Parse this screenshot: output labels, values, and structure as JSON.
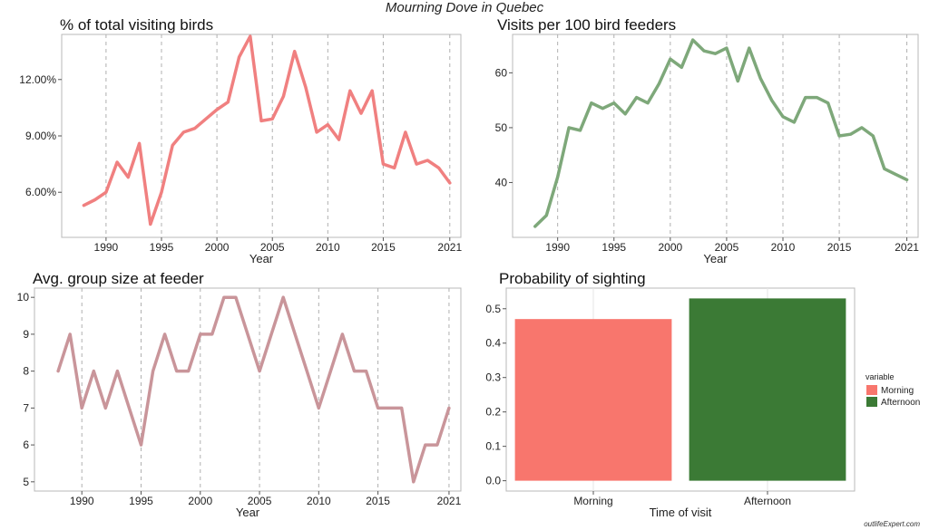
{
  "figure": {
    "title": "Mourning Dove in Quebec",
    "watermark": "outlifeExpert.com"
  },
  "chart_data": [
    {
      "id": "pct-visiting",
      "type": "line",
      "title": "% of total visiting birds",
      "xlabel": "Year",
      "ylabel": "",
      "color": "#f08080",
      "xlim": [
        1986,
        2022
      ],
      "ylim": [
        3.6,
        14.4
      ],
      "x_ticks": [
        1990,
        1995,
        2000,
        2005,
        2010,
        2015,
        2021
      ],
      "y_ticks": [
        6,
        9,
        12
      ],
      "y_tick_labels": [
        "6.00%",
        "9.00%",
        "12.00%"
      ],
      "x": [
        1988,
        1989,
        1990,
        1991,
        1992,
        1993,
        1994,
        1995,
        1996,
        1997,
        1998,
        1999,
        2000,
        2001,
        2002,
        2003,
        2004,
        2005,
        2006,
        2007,
        2008,
        2009,
        2010,
        2011,
        2012,
        2013,
        2014,
        2015,
        2016,
        2017,
        2018,
        2019,
        2020,
        2021
      ],
      "values": [
        5.3,
        5.6,
        6.0,
        7.6,
        6.8,
        8.6,
        4.3,
        6.0,
        8.5,
        9.2,
        9.4,
        9.9,
        10.4,
        10.8,
        13.2,
        14.3,
        9.8,
        9.9,
        11.1,
        13.5,
        11.6,
        9.2,
        9.6,
        8.8,
        11.4,
        10.2,
        11.4,
        7.5,
        7.3,
        9.2,
        7.5,
        7.7,
        7.3,
        6.5
      ]
    },
    {
      "id": "visits-per-100",
      "type": "line",
      "title": "Visits per 100 bird feeders",
      "xlabel": "Year",
      "ylabel": "",
      "color": "#7ea87a",
      "xlim": [
        1986,
        2022
      ],
      "ylim": [
        30,
        67
      ],
      "x_ticks": [
        1990,
        1995,
        2000,
        2005,
        2010,
        2015,
        2021
      ],
      "y_ticks": [
        40,
        50,
        60
      ],
      "y_tick_labels": [
        "40",
        "50",
        "60"
      ],
      "x": [
        1988,
        1989,
        1990,
        1991,
        1992,
        1993,
        1994,
        1995,
        1996,
        1997,
        1998,
        1999,
        2000,
        2001,
        2002,
        2003,
        2004,
        2005,
        2006,
        2007,
        2008,
        2009,
        2010,
        2011,
        2012,
        2013,
        2014,
        2015,
        2016,
        2017,
        2018,
        2019,
        2020,
        2021
      ],
      "values": [
        32,
        34,
        41,
        50,
        49.5,
        54.5,
        53.5,
        54.5,
        52.5,
        55.5,
        54.5,
        58,
        62.5,
        61,
        66,
        64,
        63.5,
        64.5,
        58.5,
        64.5,
        59,
        55,
        52,
        51,
        55.5,
        55.5,
        54.5,
        48.5,
        48.8,
        50,
        48.5,
        42.5,
        41.5,
        40.5
      ]
    },
    {
      "id": "group-size",
      "type": "line",
      "title": "Avg. group size at feeder",
      "xlabel": "Year",
      "ylabel": "",
      "color": "#c9959a",
      "xlim": [
        1986,
        2022
      ],
      "ylim": [
        4.75,
        10.25
      ],
      "x_ticks": [
        1990,
        1995,
        2000,
        2005,
        2010,
        2015,
        2021
      ],
      "y_ticks": [
        5,
        6,
        7,
        8,
        9,
        10
      ],
      "y_tick_labels": [
        "5",
        "6",
        "7",
        "8",
        "9",
        "10"
      ],
      "x": [
        1988,
        1989,
        1990,
        1991,
        1992,
        1993,
        1994,
        1995,
        1996,
        1997,
        1998,
        1999,
        2000,
        2001,
        2002,
        2003,
        2004,
        2005,
        2006,
        2007,
        2008,
        2009,
        2010,
        2011,
        2012,
        2013,
        2014,
        2015,
        2016,
        2017,
        2018,
        2019,
        2020,
        2021
      ],
      "values": [
        8,
        9,
        7,
        8,
        7,
        8,
        7,
        6,
        8,
        9,
        8,
        8,
        9,
        9,
        10,
        10,
        9,
        8,
        9,
        10,
        9,
        8,
        7,
        8,
        9,
        8,
        8,
        7,
        7,
        7,
        5,
        6,
        6,
        7
      ]
    },
    {
      "id": "prob-sighting",
      "type": "bar",
      "title": "Probability of sighting",
      "xlabel": "Time of visit",
      "ylabel": "",
      "categories": [
        "Morning",
        "Afternoon"
      ],
      "values": [
        0.47,
        0.53
      ],
      "colors": [
        "#f8766d",
        "#3b7a35"
      ],
      "ylim": [
        -0.03,
        0.56
      ],
      "y_ticks": [
        0,
        0.1,
        0.2,
        0.3,
        0.4,
        0.5
      ],
      "y_tick_labels": [
        "0.0",
        "0.1",
        "0.2",
        "0.3",
        "0.4",
        "0.5"
      ],
      "legend": {
        "title": "variable",
        "position": "right",
        "entries": [
          "Morning",
          "Afternoon"
        ]
      }
    }
  ]
}
